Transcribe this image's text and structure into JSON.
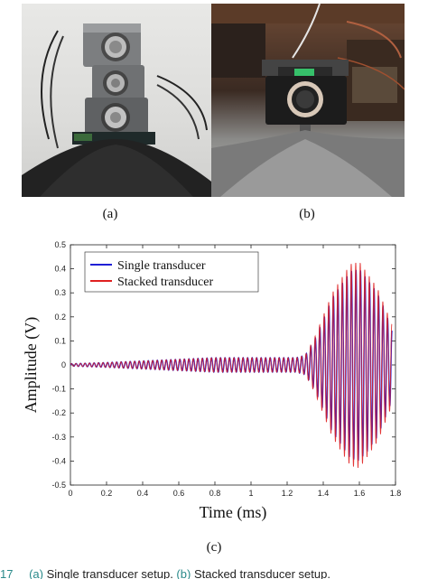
{
  "photos": {
    "a": {
      "caption": "(a)"
    },
    "b": {
      "caption": "(b)"
    }
  },
  "chart_caption": "(c)",
  "chart_data": {
    "type": "line",
    "xlabel": "Time (ms)",
    "ylabel": "Amplitude (V)",
    "xlim": [
      0,
      1.8
    ],
    "ylim": [
      -0.5,
      0.5
    ],
    "x_ticks": [
      0,
      0.2,
      0.4,
      0.6,
      0.8,
      1,
      1.2,
      1.4,
      1.6,
      1.8
    ],
    "x_tick_labels": [
      "0",
      "0.2",
      "0.4",
      "0.6",
      "0.8",
      "1",
      "1.2",
      "1.4",
      "1.6",
      "1.8"
    ],
    "y_ticks": [
      -0.5,
      -0.4,
      -0.3,
      -0.2,
      -0.1,
      0,
      0.1,
      0.2,
      0.3,
      0.4,
      0.5
    ],
    "y_tick_labels": [
      "-0.5",
      "-0.4",
      "-0.3",
      "-0.2",
      "-0.1",
      "0",
      "0.1",
      "0.2",
      "0.3",
      "0.4",
      "0.5"
    ],
    "grid": false,
    "legend_position": "top-left",
    "series": [
      {
        "name": "Single transducer",
        "color": "#1f1fd6",
        "signal": "sinusoidal burst",
        "frequency_khz": 40,
        "envelope_t_ms": [
          0,
          0.2,
          0.5,
          0.8,
          1.0,
          1.25,
          1.3,
          1.35,
          1.45,
          1.55,
          1.6,
          1.7,
          1.78
        ],
        "envelope_amplitude_v": [
          0.005,
          0.01,
          0.02,
          0.03,
          0.03,
          0.03,
          0.04,
          0.1,
          0.28,
          0.39,
          0.4,
          0.3,
          0.15
        ]
      },
      {
        "name": "Stacked transducer",
        "color": "#e02020",
        "signal": "sinusoidal burst",
        "frequency_khz": 40,
        "envelope_t_ms": [
          0,
          0.2,
          0.5,
          0.8,
          1.0,
          1.25,
          1.3,
          1.35,
          1.45,
          1.55,
          1.6,
          1.7,
          1.78
        ],
        "envelope_amplitude_v": [
          0.005,
          0.01,
          0.02,
          0.03,
          0.03,
          0.03,
          0.04,
          0.11,
          0.3,
          0.42,
          0.43,
          0.32,
          0.17
        ]
      }
    ]
  },
  "figure_caption": {
    "number": "17",
    "segments": [
      "(a)",
      " Single transducer setup. ",
      "(b)",
      " Stacked transducer setup."
    ]
  }
}
